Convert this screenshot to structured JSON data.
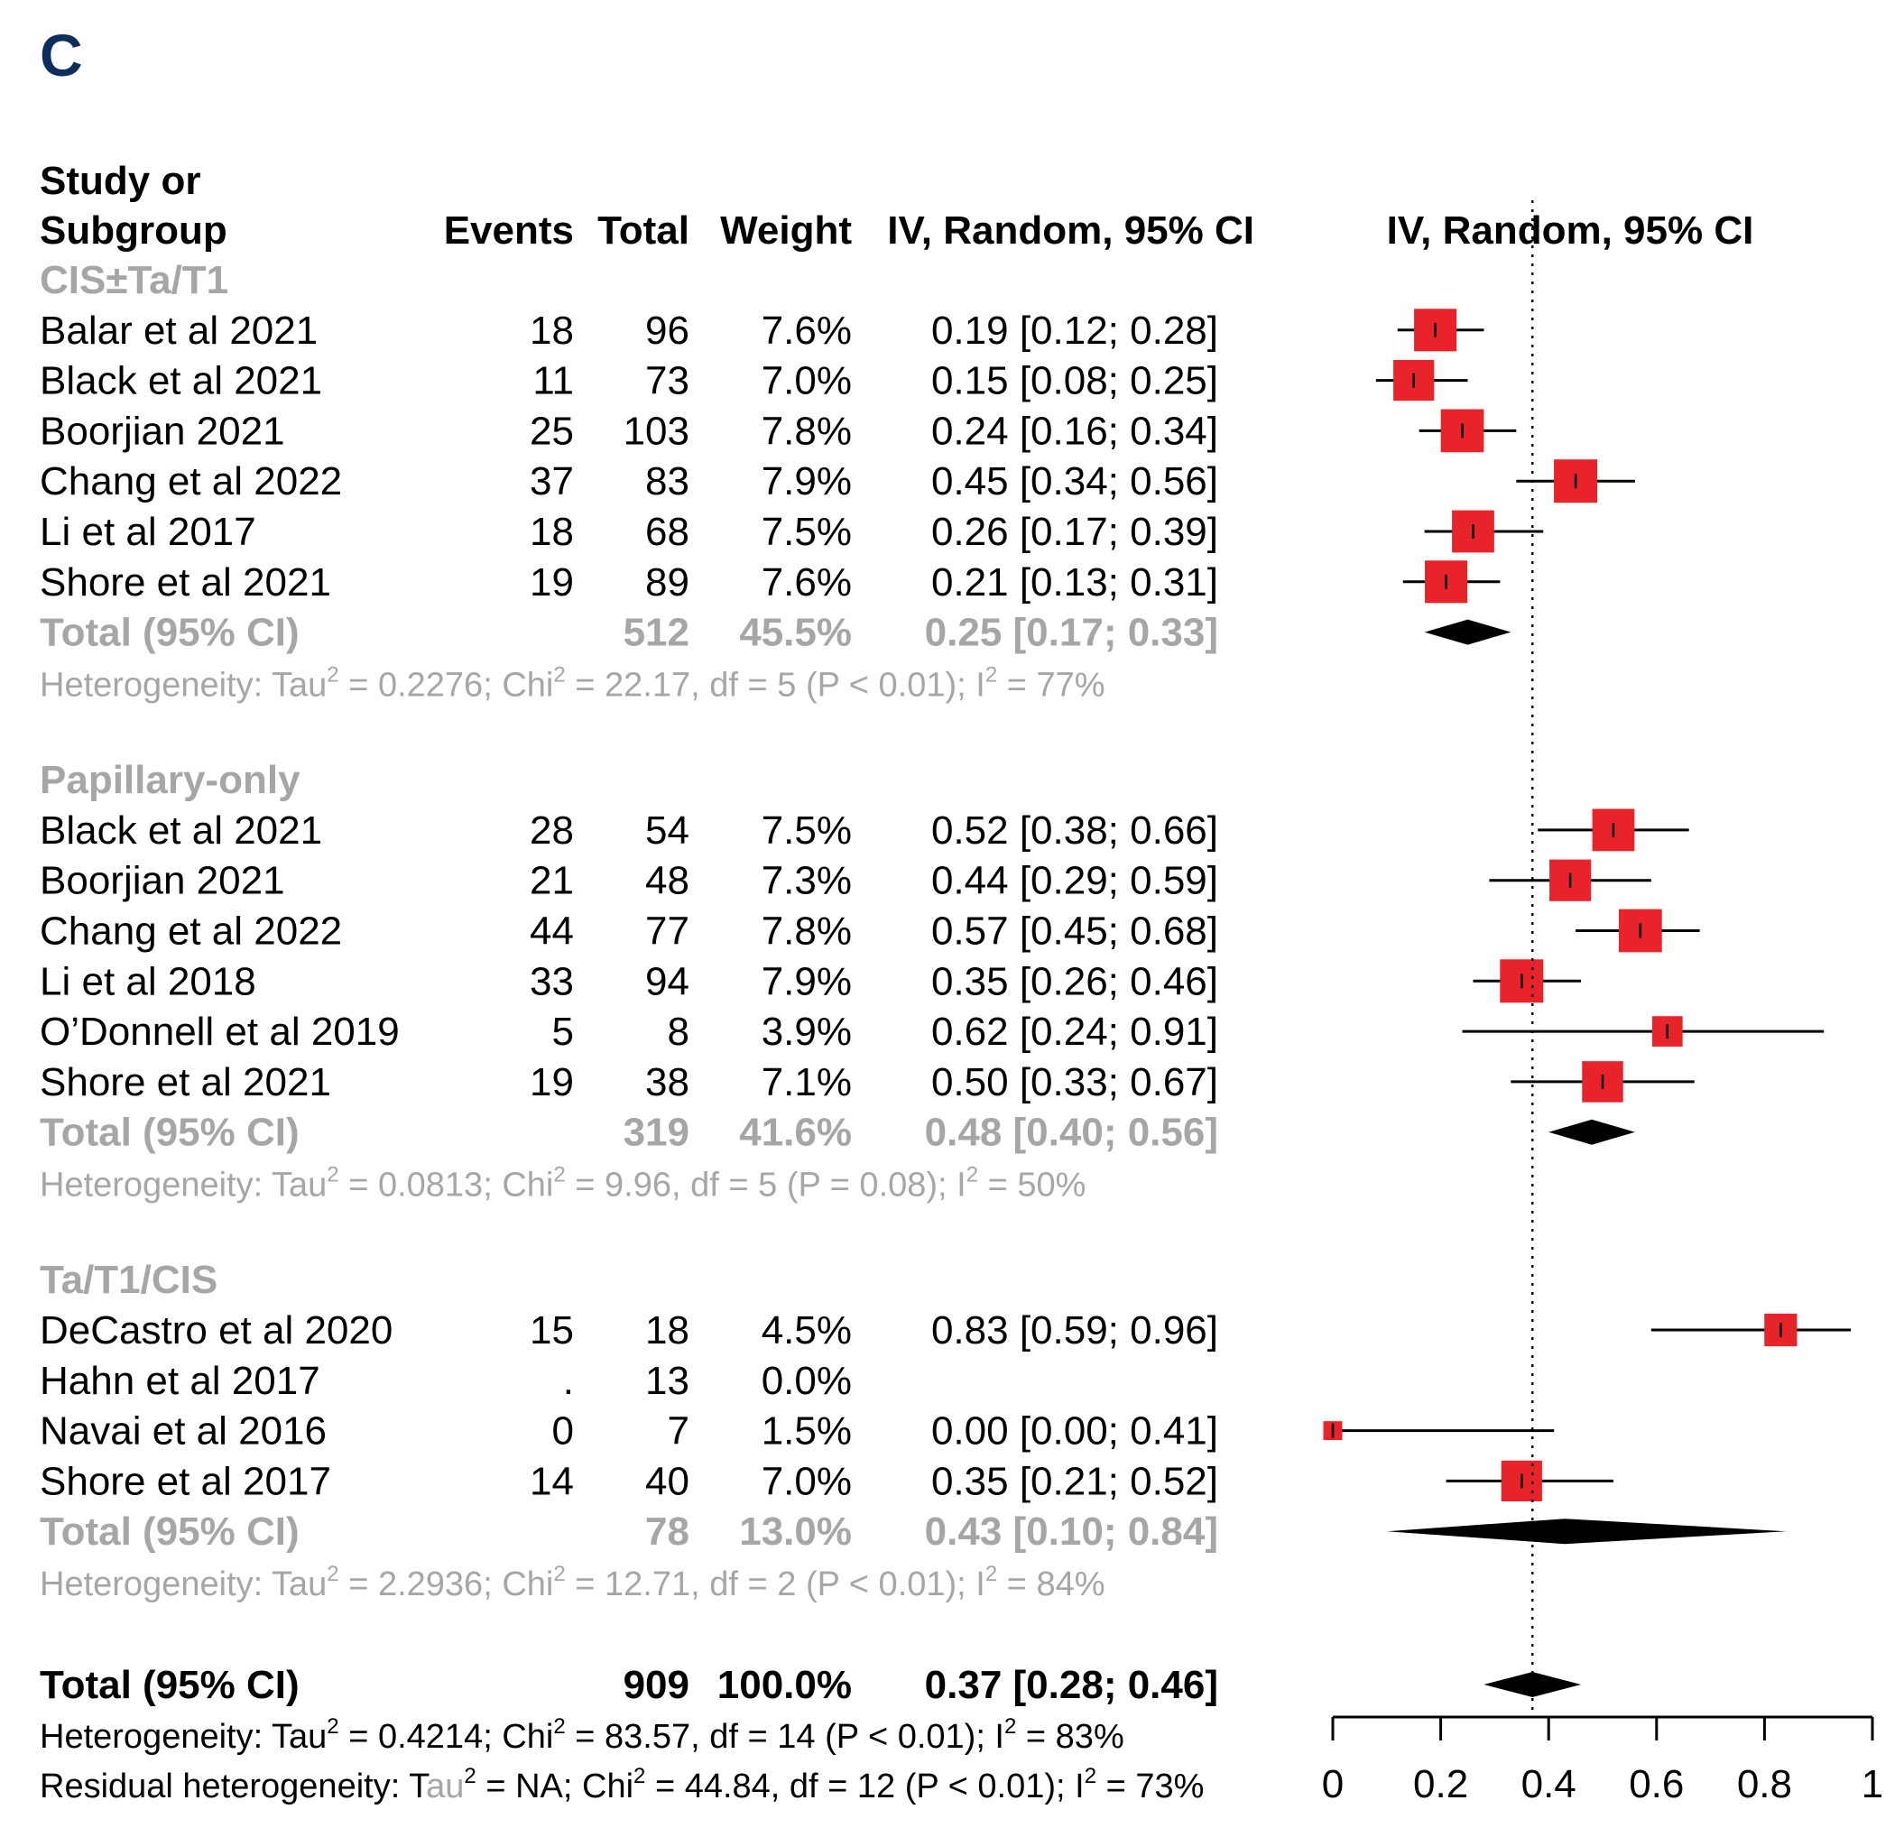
{
  "panel_label": "C",
  "colors": {
    "square": "#e8232a",
    "subgroup_text": "#a6a6a6",
    "panel_label": "#0d2d5e"
  },
  "headers": {
    "study_line1": "Study or",
    "study_line2": "Subgroup",
    "events": "Events",
    "total": "Total",
    "weight": "Weight",
    "ci": "IV, Random, 95% CI",
    "plot": "IV, Random, 95% CI"
  },
  "chart_data": {
    "type": "forest",
    "xlim": [
      0,
      1
    ],
    "ticks": [
      "0",
      "0.2",
      "0.4",
      "0.6",
      "0.8",
      "1"
    ],
    "reference_line": 0.37,
    "subgroups": [
      {
        "name": "CIS±Ta/T1",
        "studies": [
          {
            "study": "Balar et al 2021",
            "events": "18",
            "total": "96",
            "weight": "7.6%",
            "ci_text": "0.19 [0.12; 0.28]",
            "est": 0.19,
            "lo": 0.12,
            "hi": 0.28
          },
          {
            "study": "Black et al 2021",
            "events": "11",
            "total": "73",
            "weight": "7.0%",
            "ci_text": "0.15 [0.08; 0.25]",
            "est": 0.15,
            "lo": 0.08,
            "hi": 0.25
          },
          {
            "study": "Boorjian 2021",
            "events": "25",
            "total": "103",
            "weight": "7.8%",
            "ci_text": "0.24 [0.16; 0.34]",
            "est": 0.24,
            "lo": 0.16,
            "hi": 0.34
          },
          {
            "study": "Chang et al 2022",
            "events": "37",
            "total": "83",
            "weight": "7.9%",
            "ci_text": "0.45 [0.34; 0.56]",
            "est": 0.45,
            "lo": 0.34,
            "hi": 0.56
          },
          {
            "study": "Li et al 2017",
            "events": "18",
            "total": "68",
            "weight": "7.5%",
            "ci_text": "0.26 [0.17; 0.39]",
            "est": 0.26,
            "lo": 0.17,
            "hi": 0.39
          },
          {
            "study": "Shore et al 2021",
            "events": "19",
            "total": "89",
            "weight": "7.6%",
            "ci_text": "0.21 [0.13; 0.31]",
            "est": 0.21,
            "lo": 0.13,
            "hi": 0.31
          }
        ],
        "total": {
          "label": "Total (95% CI)",
          "total": "512",
          "weight": "45.5%",
          "ci_text": "0.25 [0.17; 0.33]",
          "est": 0.25,
          "lo": 0.17,
          "hi": 0.33
        },
        "het": {
          "prefix": "Heterogeneity: Tau",
          "tau2": "0.2276",
          "chi2": "22.17",
          "df": "5",
          "p": "(P < 0.01)",
          "i2": "77%"
        }
      },
      {
        "name": "Papillary-only",
        "studies": [
          {
            "study": "Black et al 2021",
            "events": "28",
            "total": "54",
            "weight": "7.5%",
            "ci_text": "0.52 [0.38; 0.66]",
            "est": 0.52,
            "lo": 0.38,
            "hi": 0.66
          },
          {
            "study": "Boorjian 2021",
            "events": "21",
            "total": "48",
            "weight": "7.3%",
            "ci_text": "0.44 [0.29; 0.59]",
            "est": 0.44,
            "lo": 0.29,
            "hi": 0.59
          },
          {
            "study": "Chang et al 2022",
            "events": "44",
            "total": "77",
            "weight": "7.8%",
            "ci_text": "0.57 [0.45; 0.68]",
            "est": 0.57,
            "lo": 0.45,
            "hi": 0.68
          },
          {
            "study": "Li et al 2018",
            "events": "33",
            "total": "94",
            "weight": "7.9%",
            "ci_text": "0.35 [0.26; 0.46]",
            "est": 0.35,
            "lo": 0.26,
            "hi": 0.46
          },
          {
            "study": "O’Donnell et al 2019",
            "events": "5",
            "total": "8",
            "weight": "3.9%",
            "ci_text": "0.62 [0.24; 0.91]",
            "est": 0.62,
            "lo": 0.24,
            "hi": 0.91
          },
          {
            "study": "Shore et al 2021",
            "events": "19",
            "total": "38",
            "weight": "7.1%",
            "ci_text": "0.50 [0.33; 0.67]",
            "est": 0.5,
            "lo": 0.33,
            "hi": 0.67
          }
        ],
        "total": {
          "label": "Total (95% CI)",
          "total": "319",
          "weight": "41.6%",
          "ci_text": "0.48 [0.40; 0.56]",
          "est": 0.48,
          "lo": 0.4,
          "hi": 0.56
        },
        "het": {
          "prefix": "Heterogeneity: Tau",
          "tau2": "0.0813",
          "chi2": "9.96",
          "df": "5",
          "p": "(P = 0.08)",
          "i2": "50%"
        }
      },
      {
        "name": "Ta/T1/CIS",
        "studies": [
          {
            "study": "DeCastro et al 2020",
            "events": "15",
            "total": "18",
            "weight": "4.5%",
            "ci_text": "0.83 [0.59; 0.96]",
            "est": 0.83,
            "lo": 0.59,
            "hi": 0.96
          },
          {
            "study": "Hahn et al 2017",
            "events": ".",
            "total": "13",
            "weight": "0.0%",
            "ci_text": "",
            "est": null,
            "lo": null,
            "hi": null
          },
          {
            "study": "Navai et al 2016",
            "events": "0",
            "total": "7",
            "weight": "1.5%",
            "ci_text": "0.00 [0.00; 0.41]",
            "est": 0.0,
            "lo": 0.0,
            "hi": 0.41
          },
          {
            "study": "Shore et al 2017",
            "events": "14",
            "total": "40",
            "weight": "7.0%",
            "ci_text": "0.35 [0.21; 0.52]",
            "est": 0.35,
            "lo": 0.21,
            "hi": 0.52
          }
        ],
        "total": {
          "label": "Total (95% CI)",
          "total": "78",
          "weight": "13.0%",
          "ci_text": "0.43 [0.10; 0.84]",
          "est": 0.43,
          "lo": 0.1,
          "hi": 0.84
        },
        "het": {
          "prefix": "Heterogeneity: Tau",
          "tau2": "2.2936",
          "chi2": "12.71",
          "df": "2",
          "p": "(P < 0.01)",
          "i2": "84%"
        }
      }
    ],
    "overall": {
      "label": "Total (95% CI)",
      "total": "909",
      "weight": "100.0%",
      "ci_text": "0.37 [0.28; 0.46]",
      "est": 0.37,
      "lo": 0.28,
      "hi": 0.46,
      "het": {
        "prefix": "Heterogeneity: Tau",
        "tau2": "0.4214",
        "chi2": "83.57",
        "df": "14",
        "p": "(P < 0.01)",
        "i2": "83%"
      },
      "residual": {
        "prefix": "Residual heterogeneity: T",
        "prefix_gray": "au",
        "tau2": "NA",
        "chi2": "44.84",
        "df": "12",
        "p": "(P < 0.01)",
        "i2": "73%"
      }
    }
  }
}
